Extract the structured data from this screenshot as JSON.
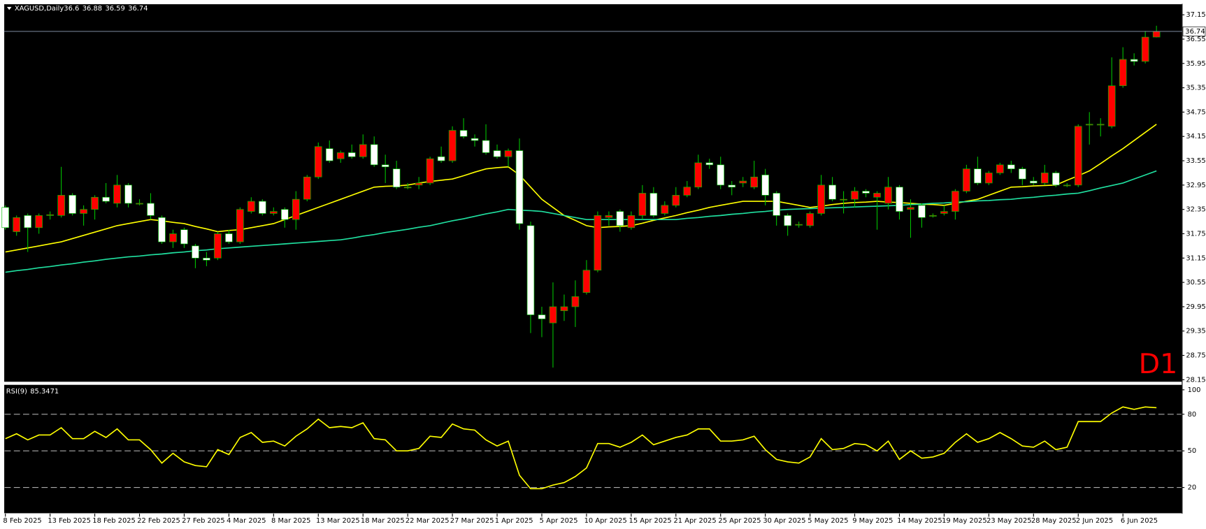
{
  "header": {
    "symbol": "XAGUSD,Daily",
    "timeframe_label": "D1"
  },
  "chart_data": [
    {
      "type": "candlestick",
      "categories": [
        "8 Feb 2025",
        null,
        null,
        null,
        "13 Feb 2025",
        null,
        null,
        null,
        "18 Feb 2025",
        null,
        null,
        null,
        "22 Feb 2025",
        null,
        null,
        null,
        "27 Feb 2025",
        null,
        null,
        null,
        "4 Mar 2025",
        null,
        null,
        null,
        "8 Mar 2025",
        null,
        null,
        null,
        "13 Mar 2025",
        null,
        null,
        null,
        "18 Mar 2025",
        null,
        null,
        null,
        "22 Mar 2025",
        null,
        null,
        null,
        "27 Mar 2025",
        null,
        null,
        null,
        "1 Apr 2025",
        null,
        null,
        null,
        "5 Apr 2025",
        null,
        null,
        null,
        "10 Apr 2025",
        null,
        null,
        null,
        "15 Apr 2025",
        null,
        null,
        null,
        "21 Apr 2025",
        null,
        null,
        null,
        "25 Apr 2025",
        null,
        null,
        null,
        "30 Apr 2025",
        null,
        null,
        null,
        "5 May 2025",
        null,
        null,
        null,
        "9 May 2025",
        null,
        null,
        null,
        "14 May 2025",
        null,
        null,
        null,
        "19 May 2025",
        null,
        null,
        null,
        "23 May 2025",
        null,
        null,
        null,
        "28 May 2025",
        null,
        null,
        null,
        "2 Jun 2025",
        null,
        null,
        null,
        "6 Jun 2025",
        null,
        null,
        null
      ],
      "open": [
        32.4,
        31.8,
        32.2,
        31.9,
        32.2,
        32.2,
        32.7,
        32.25,
        32.35,
        32.65,
        32.5,
        32.95,
        32.5,
        32.5,
        32.15,
        31.55,
        31.85,
        31.45,
        31.15,
        31.15,
        31.75,
        31.55,
        32.3,
        32.55,
        32.25,
        32.35,
        32.1,
        32.6,
        33.15,
        33.85,
        33.6,
        33.75,
        33.65,
        33.95,
        33.45,
        33.35,
        32.9,
        32.95,
        33.0,
        33.65,
        33.55,
        34.3,
        34.1,
        34.05,
        33.8,
        33.65,
        33.8,
        31.95,
        29.75,
        29.55,
        29.85,
        29.95,
        30.3,
        30.85,
        32.15,
        32.3,
        31.9,
        32.2,
        32.75,
        32.25,
        32.45,
        32.7,
        32.9,
        33.5,
        33.45,
        32.95,
        33.0,
        32.9,
        33.2,
        32.75,
        32.2,
        31.98,
        31.95,
        32.25,
        32.95,
        32.6,
        32.6,
        32.8,
        32.65,
        32.5,
        32.9,
        32.35,
        32.45,
        32.2,
        32.25,
        32.3,
        32.8,
        33.35,
        33.0,
        33.25,
        33.45,
        33.35,
        33.05,
        33.0,
        33.25,
        32.95,
        32.95,
        34.45,
        34.45,
        34.4,
        35.4,
        36.05,
        36.0,
        36.6
      ],
      "high": [
        32.45,
        32.2,
        32.25,
        32.25,
        32.3,
        33.4,
        32.75,
        32.45,
        32.7,
        33.0,
        33.2,
        33.0,
        32.6,
        32.75,
        32.2,
        31.85,
        31.9,
        31.5,
        31.3,
        31.8,
        31.85,
        32.4,
        32.65,
        32.6,
        32.4,
        32.4,
        32.8,
        33.2,
        34.0,
        34.05,
        33.8,
        33.95,
        34.2,
        34.15,
        33.7,
        33.55,
        33.0,
        33.15,
        33.65,
        33.9,
        34.4,
        34.6,
        34.2,
        34.45,
        33.95,
        33.85,
        34.1,
        32.05,
        29.95,
        30.55,
        30.25,
        30.6,
        31.1,
        32.3,
        32.3,
        32.35,
        32.3,
        32.95,
        32.9,
        32.55,
        32.9,
        33.05,
        33.7,
        33.6,
        33.65,
        33.05,
        33.15,
        33.55,
        33.35,
        32.8,
        32.25,
        32.05,
        32.3,
        33.2,
        33.15,
        32.8,
        32.9,
        32.85,
        32.8,
        33.15,
        32.95,
        32.6,
        32.5,
        32.25,
        32.45,
        32.85,
        33.45,
        33.65,
        33.3,
        33.5,
        33.55,
        33.4,
        33.15,
        33.45,
        33.3,
        33.0,
        34.45,
        34.75,
        34.6,
        36.1,
        36.35,
        36.2,
        36.75,
        36.88
      ],
      "low": [
        31.85,
        31.7,
        31.3,
        31.75,
        32.1,
        32.15,
        32.2,
        31.95,
        32.1,
        32.5,
        32.4,
        32.4,
        32.45,
        32.1,
        31.5,
        31.4,
        31.4,
        30.9,
        30.95,
        31.1,
        31.5,
        31.5,
        32.25,
        32.2,
        32.2,
        31.9,
        31.85,
        32.55,
        33.1,
        33.5,
        33.5,
        33.6,
        33.6,
        33.4,
        33.0,
        32.85,
        32.85,
        32.85,
        32.95,
        33.5,
        33.5,
        34.1,
        33.9,
        33.7,
        33.6,
        33.4,
        31.85,
        29.3,
        29.2,
        28.45,
        29.6,
        29.45,
        30.25,
        30.8,
        31.95,
        31.8,
        31.85,
        32.1,
        32.15,
        32.2,
        32.4,
        32.65,
        32.85,
        33.35,
        32.85,
        32.7,
        32.9,
        32.85,
        32.45,
        31.95,
        31.7,
        31.9,
        31.9,
        32.2,
        32.55,
        32.25,
        32.4,
        32.65,
        31.85,
        32.35,
        32.1,
        31.65,
        31.9,
        32.15,
        32.2,
        32.1,
        32.75,
        32.95,
        32.95,
        33.2,
        33.25,
        32.95,
        32.95,
        32.95,
        32.9,
        32.9,
        32.9,
        33.95,
        34.15,
        34.35,
        35.35,
        35.9,
        35.95,
        36.59
      ],
      "close": [
        31.9,
        32.15,
        31.9,
        32.2,
        32.22,
        32.7,
        32.25,
        32.35,
        32.65,
        32.55,
        32.95,
        32.5,
        32.5,
        32.2,
        31.55,
        31.75,
        31.5,
        31.15,
        31.1,
        31.75,
        31.55,
        32.35,
        32.55,
        32.25,
        32.3,
        32.1,
        32.6,
        33.15,
        33.9,
        33.55,
        33.75,
        33.65,
        33.95,
        33.45,
        33.4,
        32.9,
        32.9,
        33.0,
        33.6,
        33.55,
        34.3,
        34.15,
        34.05,
        33.75,
        33.65,
        33.8,
        32.0,
        29.75,
        29.65,
        29.95,
        29.95,
        30.2,
        30.85,
        32.2,
        32.2,
        31.95,
        32.2,
        32.75,
        32.2,
        32.45,
        32.7,
        32.9,
        33.5,
        33.45,
        32.95,
        32.9,
        33.05,
        33.15,
        32.7,
        32.2,
        31.95,
        31.98,
        32.25,
        32.95,
        32.6,
        32.6,
        32.8,
        32.75,
        32.75,
        32.9,
        32.3,
        32.4,
        32.15,
        32.2,
        32.3,
        32.8,
        33.35,
        33.0,
        33.25,
        33.45,
        33.35,
        33.1,
        33.0,
        33.25,
        32.95,
        32.95,
        34.4,
        34.45,
        34.45,
        35.4,
        36.05,
        36.0,
        36.6,
        36.74
      ],
      "up_color": "#ff0000",
      "down_color": "#ffffff",
      "wick_color": "#00c000",
      "overlays": [
        {
          "color": "#ffff00",
          "values": [
            31.3,
            31.35,
            31.4,
            31.45,
            31.5,
            31.55,
            31.63,
            31.71,
            31.79,
            31.87,
            31.95,
            32.0,
            32.05,
            32.1,
            32.07,
            32.03,
            32.0,
            31.93,
            31.87,
            31.8,
            31.83,
            31.85,
            31.9,
            31.95,
            32.0,
            32.1,
            32.2,
            32.3,
            32.4,
            32.5,
            32.6,
            32.7,
            32.8,
            32.9,
            32.92,
            32.93,
            32.95,
            33.0,
            33.04,
            33.07,
            33.1,
            33.18,
            33.27,
            33.35,
            33.38,
            33.4,
            33.2,
            32.9,
            32.6,
            32.4,
            32.2,
            32.08,
            31.95,
            31.9,
            31.92,
            31.93,
            31.95,
            32.01,
            32.08,
            32.14,
            32.2,
            32.27,
            32.33,
            32.4,
            32.45,
            32.5,
            32.55,
            32.55,
            32.55,
            32.55,
            32.5,
            32.45,
            32.4,
            32.43,
            32.47,
            32.5,
            32.52,
            32.53,
            32.55,
            32.53,
            32.52,
            32.5,
            32.48,
            32.47,
            32.45,
            32.5,
            32.55,
            32.6,
            32.7,
            32.8,
            32.9,
            32.91,
            32.93,
            32.94,
            32.95,
            33.07,
            33.18,
            33.3,
            33.48,
            33.67,
            33.85,
            34.05,
            34.25,
            34.45
          ]
        },
        {
          "color": "#20e0a0",
          "values": [
            30.8,
            30.84,
            30.87,
            30.91,
            30.94,
            30.98,
            31.01,
            31.05,
            31.08,
            31.12,
            31.15,
            31.18,
            31.2,
            31.23,
            31.25,
            31.28,
            31.3,
            31.33,
            31.35,
            31.38,
            31.4,
            31.42,
            31.44,
            31.46,
            31.48,
            31.5,
            31.52,
            31.54,
            31.56,
            31.58,
            31.6,
            31.64,
            31.69,
            31.73,
            31.78,
            31.82,
            31.86,
            31.91,
            31.95,
            32.01,
            32.07,
            32.12,
            32.18,
            32.24,
            32.29,
            32.35,
            32.33,
            32.32,
            32.3,
            32.25,
            32.2,
            32.15,
            32.1,
            32.1,
            32.1,
            32.1,
            32.1,
            32.1,
            32.1,
            32.1,
            32.1,
            32.13,
            32.15,
            32.18,
            32.2,
            32.23,
            32.25,
            32.28,
            32.3,
            32.33,
            32.35,
            32.36,
            32.37,
            32.38,
            32.39,
            32.4,
            32.41,
            32.42,
            32.43,
            32.44,
            32.45,
            32.47,
            32.48,
            32.5,
            32.51,
            32.53,
            32.54,
            32.56,
            32.57,
            32.59,
            32.6,
            32.63,
            32.65,
            32.68,
            32.7,
            32.73,
            32.75,
            32.81,
            32.88,
            32.94,
            33.0,
            33.1,
            33.2,
            33.3
          ]
        }
      ],
      "ylim": [
        28.09,
        37.42
      ],
      "yticks": [
        37.15,
        36.55,
        35.95,
        35.35,
        34.75,
        34.15,
        33.55,
        32.95,
        32.35,
        31.75,
        31.15,
        30.55,
        29.95,
        29.35,
        28.75,
        28.15
      ]
    },
    {
      "type": "line",
      "indicator": "RSI(9)",
      "color": "#ffff00",
      "values": [
        60,
        64,
        59,
        63,
        63,
        69,
        60,
        60,
        66,
        61,
        68,
        59,
        59,
        51,
        40,
        48,
        41,
        38,
        37,
        51,
        47,
        61,
        65,
        57,
        58,
        54,
        62,
        68,
        76,
        69,
        70,
        69,
        73,
        60,
        59,
        50,
        50,
        52,
        62,
        61,
        72,
        68,
        67,
        59,
        54,
        58,
        30,
        19,
        19,
        22,
        24,
        29,
        36,
        56,
        56,
        53,
        57,
        63,
        55,
        58,
        61,
        63,
        68,
        68,
        58,
        58,
        59,
        62,
        51,
        43,
        41,
        40,
        45,
        60,
        51,
        52,
        56,
        55,
        50,
        58,
        43,
        50,
        44,
        45,
        48,
        57,
        64,
        57,
        60,
        65,
        60,
        54,
        53,
        58,
        51,
        53,
        74,
        74,
        74,
        81,
        86,
        84,
        86,
        85.3471
      ],
      "ylim": [
        -1.4,
        104.4
      ],
      "yticks": [
        20,
        50,
        80,
        100
      ],
      "levels": [
        20,
        50,
        80
      ]
    }
  ]
}
